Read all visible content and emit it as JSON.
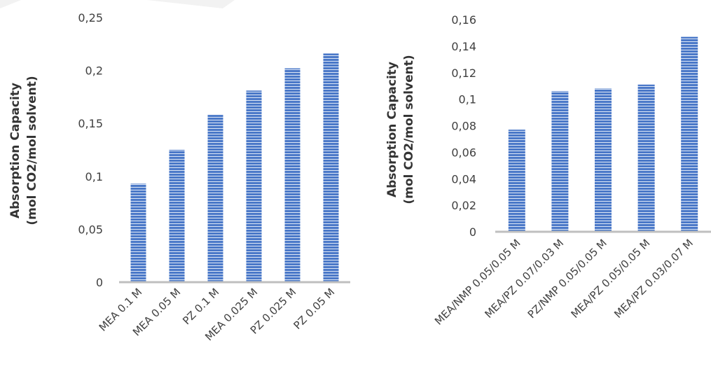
{
  "colors": {
    "bar": "#4a78c8",
    "bar_stripe": "#ffffff",
    "axis": "#bfbfbf",
    "text": "#404040",
    "label": "#333333"
  },
  "chart_data": [
    {
      "type": "bar",
      "title": "",
      "xlabel": "",
      "ylabel_lines": [
        "Absorption Capacity",
        "(mol CO2/mol solvent)"
      ],
      "ylim": [
        0,
        0.25
      ],
      "yticks": [
        "0",
        "0,05",
        "0,1",
        "0,15",
        "0,2",
        "0,25"
      ],
      "grid": false,
      "categories": [
        "MEA 0.1 M",
        "MEA 0.05 M",
        "PZ 0.1 M",
        "MEA 0.025 M",
        "PZ 0.025 M",
        "PZ 0.05 M"
      ],
      "values": [
        0.093,
        0.125,
        0.158,
        0.181,
        0.202,
        0.216
      ]
    },
    {
      "type": "bar",
      "title": "",
      "xlabel": "",
      "ylabel_lines": [
        "Absorption Capacity",
        "(mol CO2/mol solvent)"
      ],
      "ylim": [
        0,
        0.16
      ],
      "yticks": [
        "0",
        "0,02",
        "0,04",
        "0,06",
        "0,08",
        "0,1",
        "0,12",
        "0,14",
        "0,16"
      ],
      "grid": false,
      "categories": [
        "MEA/NMP 0.05/0.05 M",
        "MEA/PZ 0.07/0.03 M",
        "PZ/NMP 0.05/0.05 M",
        "MEA/PZ 0.05/0.05 M",
        "MEA/PZ 0.03/0.07 M"
      ],
      "values": [
        0.077,
        0.106,
        0.108,
        0.111,
        0.147
      ]
    }
  ]
}
